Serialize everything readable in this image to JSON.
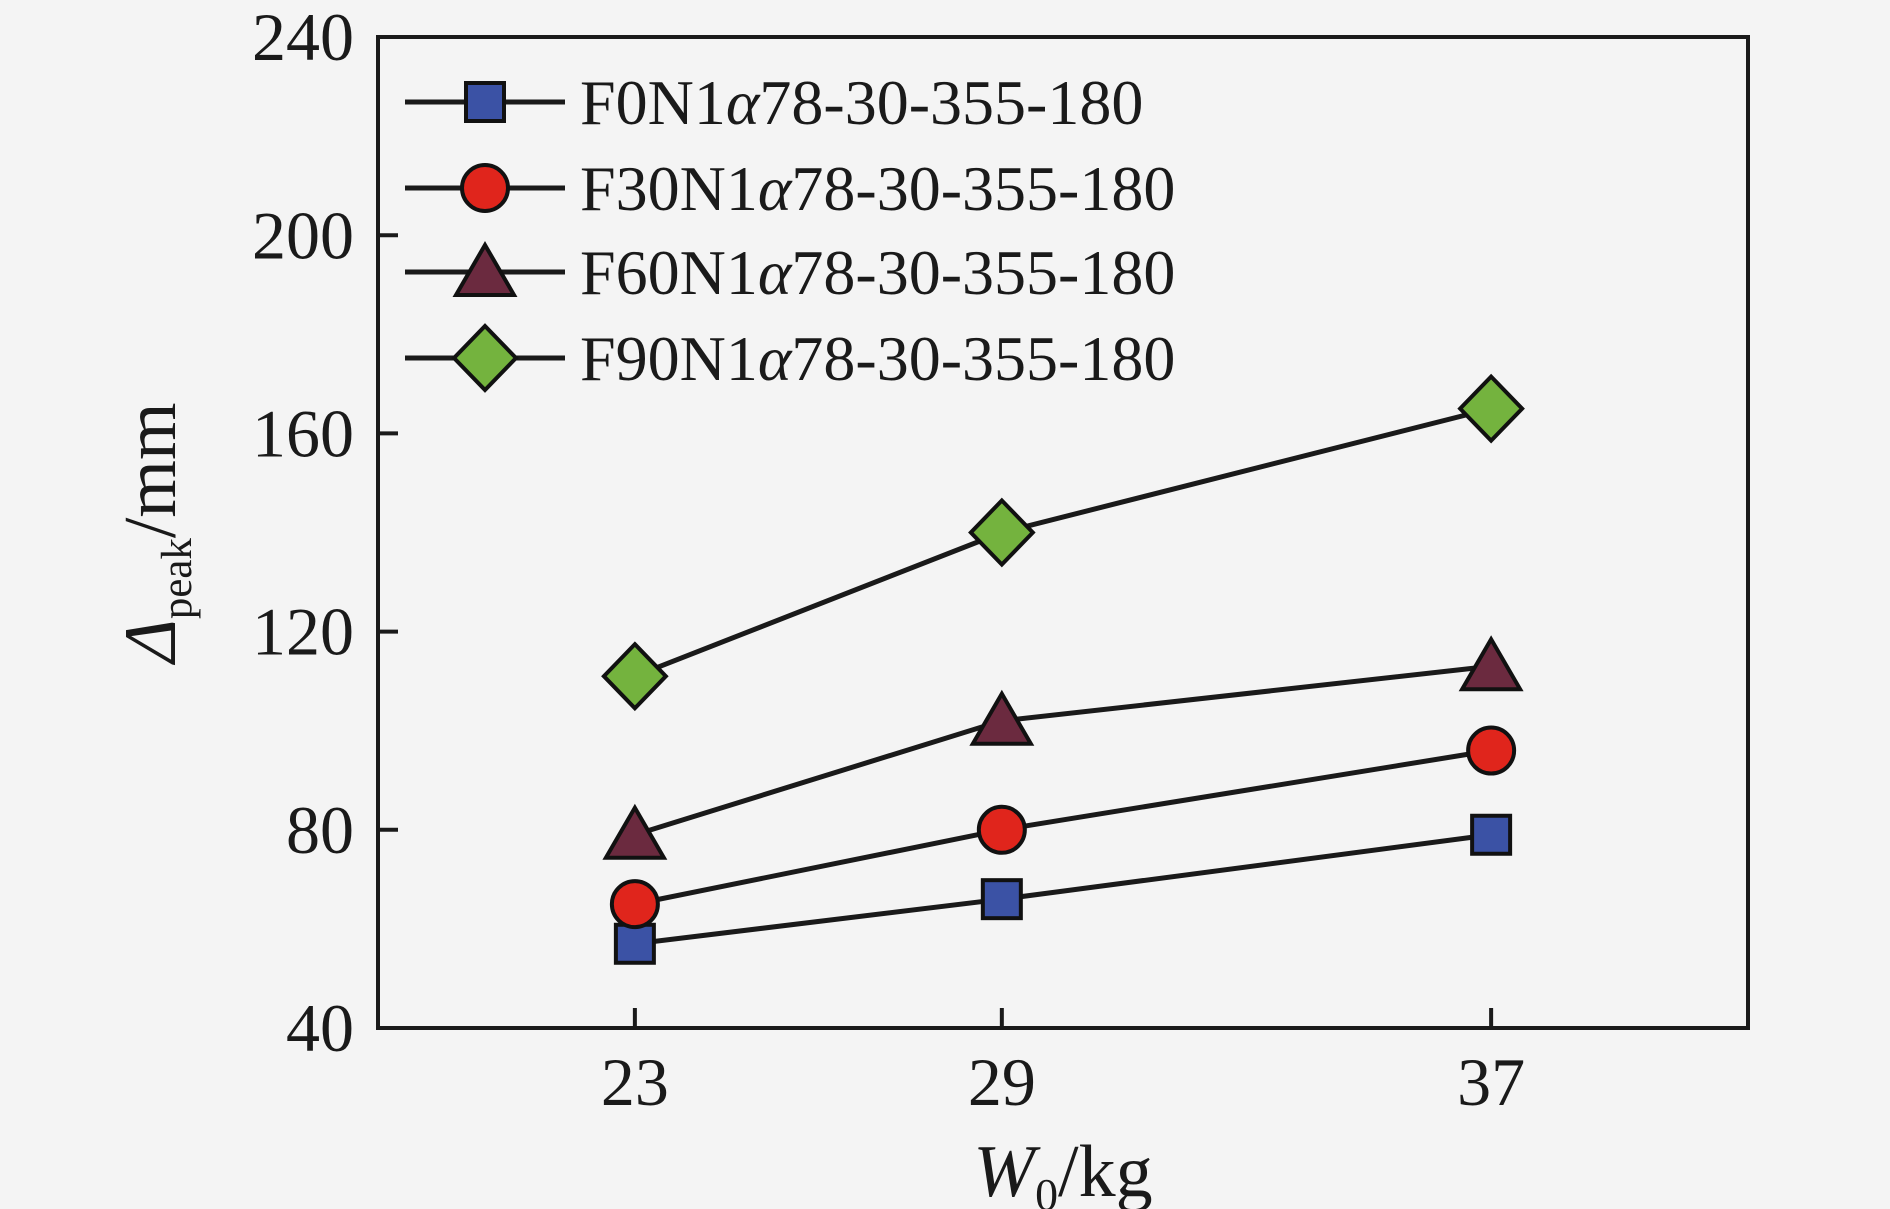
{
  "colors": {
    "background": "#f4f4f4",
    "axis": "#1a1a1a",
    "text": "#1a1a1a",
    "line": "#1a1a1a"
  },
  "chart_data": {
    "type": "line",
    "title": "",
    "xlabel": {
      "pre": "W",
      "sub": "0",
      "post": "/kg"
    },
    "ylabel": {
      "pre": "Δ",
      "sub": "peak",
      "post": "/mm"
    },
    "x": [
      23,
      29,
      37
    ],
    "x_ticks": [
      "23",
      "29",
      "37"
    ],
    "y_ticks": [
      "40",
      "80",
      "120",
      "160",
      "200",
      "240"
    ],
    "xlim": [
      18.8,
      41.2
    ],
    "ylim": [
      40,
      240
    ],
    "grid": false,
    "legend_position": "top-left-inside",
    "series": [
      {
        "name": "F0N1α78-30-355-180",
        "marker": "square",
        "color": "#3b52a5",
        "values": [
          57,
          66,
          79
        ]
      },
      {
        "name": "F30N1α78-30-355-180",
        "marker": "circle",
        "color": "#e0251c",
        "values": [
          65,
          80,
          96
        ]
      },
      {
        "name": "F60N1α78-30-355-180",
        "marker": "triangle",
        "color": "#6b2a3f",
        "values": [
          79,
          102,
          113
        ]
      },
      {
        "name": "F90N1α78-30-355-180",
        "marker": "diamond",
        "color": "#74b33e",
        "values": [
          111,
          140,
          165
        ]
      }
    ]
  }
}
